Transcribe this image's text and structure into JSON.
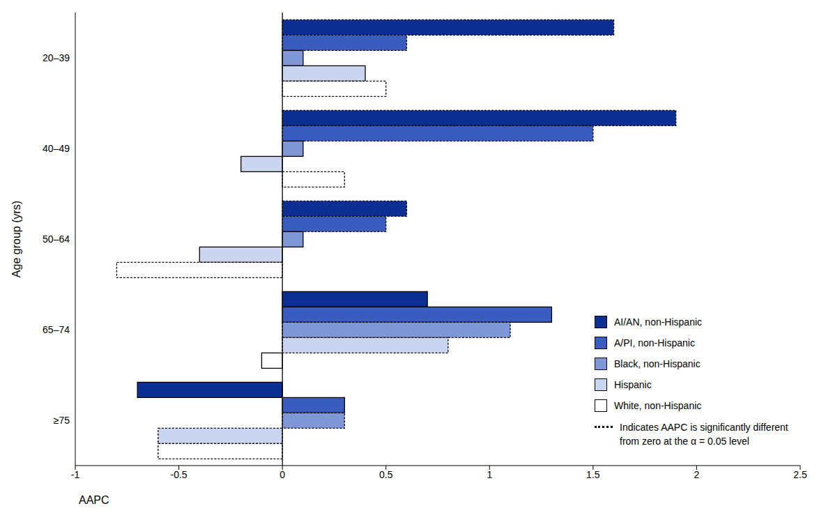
{
  "chart_data": {
    "type": "bar",
    "orientation": "horizontal",
    "x_label": "AAPC",
    "y_label": "Age group (yrs)",
    "categories": [
      "20–39",
      "40–49",
      "50–64",
      "65–74",
      "≥75"
    ],
    "series": [
      {
        "name": "AI/AN, non-Hispanic",
        "color": "#0d2f94",
        "values": [
          1.6,
          1.9,
          0.6,
          0.7,
          -0.7
        ],
        "significant": [
          true,
          true,
          true,
          false,
          false
        ]
      },
      {
        "name": "A/PI, non-Hispanic",
        "color": "#3a5cbf",
        "values": [
          0.6,
          1.5,
          0.5,
          1.3,
          0.3
        ],
        "significant": [
          true,
          true,
          true,
          false,
          false
        ]
      },
      {
        "name": "Black, non-Hispanic",
        "color": "#7f97d6",
        "values": [
          0.1,
          0.1,
          0.1,
          1.1,
          0.3
        ],
        "significant": [
          false,
          false,
          false,
          true,
          true
        ]
      },
      {
        "name": "Hispanic",
        "color": "#cbd5ef",
        "values": [
          0.4,
          -0.2,
          -0.4,
          0.8,
          -0.6
        ],
        "significant": [
          false,
          false,
          false,
          true,
          true
        ]
      },
      {
        "name": "White, non-Hispanic",
        "color": "#ffffff",
        "values": [
          0.5,
          0.3,
          -0.8,
          -0.1,
          -0.6
        ],
        "significant": [
          true,
          true,
          true,
          false,
          true
        ]
      }
    ],
    "legend_note": "Indicates AAPC is significantly different from zero at the α = 0.05 level",
    "xlim": [
      -1,
      2.5
    ],
    "xticks": [
      -1,
      -0.5,
      0,
      0.5,
      1,
      1.5,
      2,
      2.5
    ],
    "legend": "lower right",
    "grid": false
  }
}
